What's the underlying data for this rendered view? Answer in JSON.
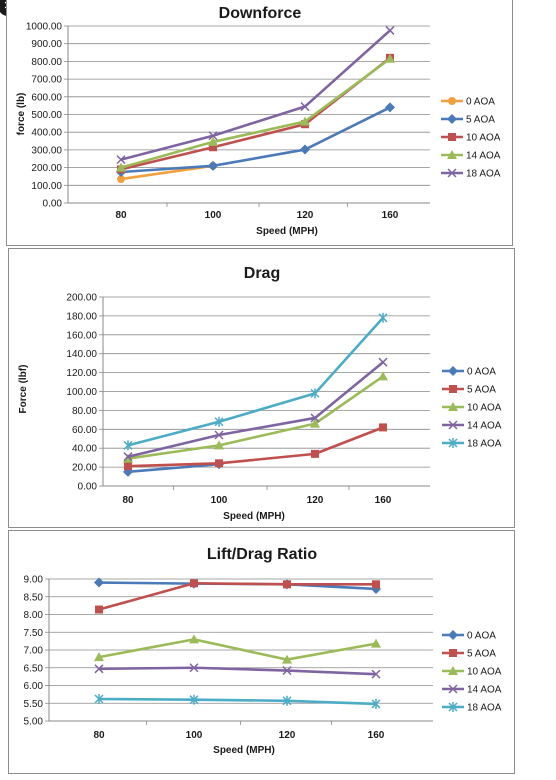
{
  "close_icon": "close-icon",
  "charts": [
    {
      "title": "Downforce",
      "xlabel": "Speed (MPH)",
      "ylabel": "force (lb)"
    },
    {
      "title": "Drag",
      "xlabel": "Speed (MPH)",
      "ylabel": "Force (lbf)"
    },
    {
      "title": "Lift/Drag Ratio",
      "xlabel": "Speed (MPH)",
      "ylabel": ""
    }
  ],
  "chart_data": [
    {
      "type": "line",
      "title": "Downforce",
      "xlabel": "Speed (MPH)",
      "ylabel": "force (lb)",
      "x": [
        "80",
        "100",
        "120",
        "160"
      ],
      "ylim": [
        0,
        1000
      ],
      "ytick_step": 100,
      "ytick_decimals": 2,
      "grid": true,
      "legend_position": "right",
      "series": [
        {
          "name": "0 AOA",
          "marker": "circle",
          "color": "#f0a03c",
          "values": [
            135,
            210,
            null,
            null
          ]
        },
        {
          "name": "5 AOA",
          "marker": "diamond",
          "color": "#4a7ab8",
          "values": [
            175,
            210,
            302,
            540
          ]
        },
        {
          "name": "10 AOA",
          "marker": "square",
          "color": "#c0504d",
          "values": [
            190,
            315,
            445,
            820
          ]
        },
        {
          "name": "14 AOA",
          "marker": "triangle",
          "color": "#9bbb59",
          "values": [
            200,
            345,
            460,
            815
          ]
        },
        {
          "name": "18 AOA",
          "marker": "x",
          "color": "#8064a2",
          "values": [
            245,
            380,
            545,
            975
          ]
        }
      ]
    },
    {
      "type": "line",
      "title": "Drag",
      "xlabel": "Speed (MPH)",
      "ylabel": "Force (lbf)",
      "x": [
        "80",
        "100",
        "120",
        "160"
      ],
      "ylim": [
        0,
        200
      ],
      "ytick_step": 20,
      "ytick_decimals": 2,
      "grid": true,
      "legend_position": "right",
      "series": [
        {
          "name": "0 AOA",
          "marker": "diamond",
          "color": "#4a7ab8",
          "values": [
            15,
            23,
            null,
            null
          ]
        },
        {
          "name": "5 AOA",
          "marker": "square",
          "color": "#c0504d",
          "values": [
            21,
            24,
            34,
            62
          ]
        },
        {
          "name": "10 AOA",
          "marker": "triangle",
          "color": "#9bbb59",
          "values": [
            29,
            43,
            66,
            116
          ]
        },
        {
          "name": "14 AOA",
          "marker": "x",
          "color": "#8064a2",
          "values": [
            31,
            54,
            72,
            131
          ]
        },
        {
          "name": "18 AOA",
          "marker": "star",
          "color": "#4bacc6",
          "values": [
            43,
            68,
            98,
            178
          ]
        }
      ]
    },
    {
      "type": "line",
      "title": "Lift/Drag Ratio",
      "xlabel": "Speed (MPH)",
      "ylabel": "",
      "x": [
        "80",
        "100",
        "120",
        "160"
      ],
      "ylim": [
        5,
        9
      ],
      "ytick_step": 0.5,
      "ytick_decimals": 2,
      "grid": true,
      "legend_position": "right",
      "series": [
        {
          "name": "0 AOA",
          "marker": "diamond",
          "color": "#4a7ab8",
          "values": [
            8.9,
            8.87,
            8.85,
            8.72
          ]
        },
        {
          "name": "5 AOA",
          "marker": "square",
          "color": "#c0504d",
          "values": [
            8.14,
            8.88,
            8.85,
            8.85
          ]
        },
        {
          "name": "10 AOA",
          "marker": "triangle",
          "color": "#9bbb59",
          "values": [
            6.8,
            7.3,
            6.73,
            7.18
          ]
        },
        {
          "name": "14 AOA",
          "marker": "x",
          "color": "#8064a2",
          "values": [
            6.47,
            6.5,
            6.42,
            6.32
          ]
        },
        {
          "name": "18 AOA",
          "marker": "star",
          "color": "#4bacc6",
          "values": [
            5.62,
            5.6,
            5.57,
            5.48
          ]
        }
      ]
    }
  ]
}
